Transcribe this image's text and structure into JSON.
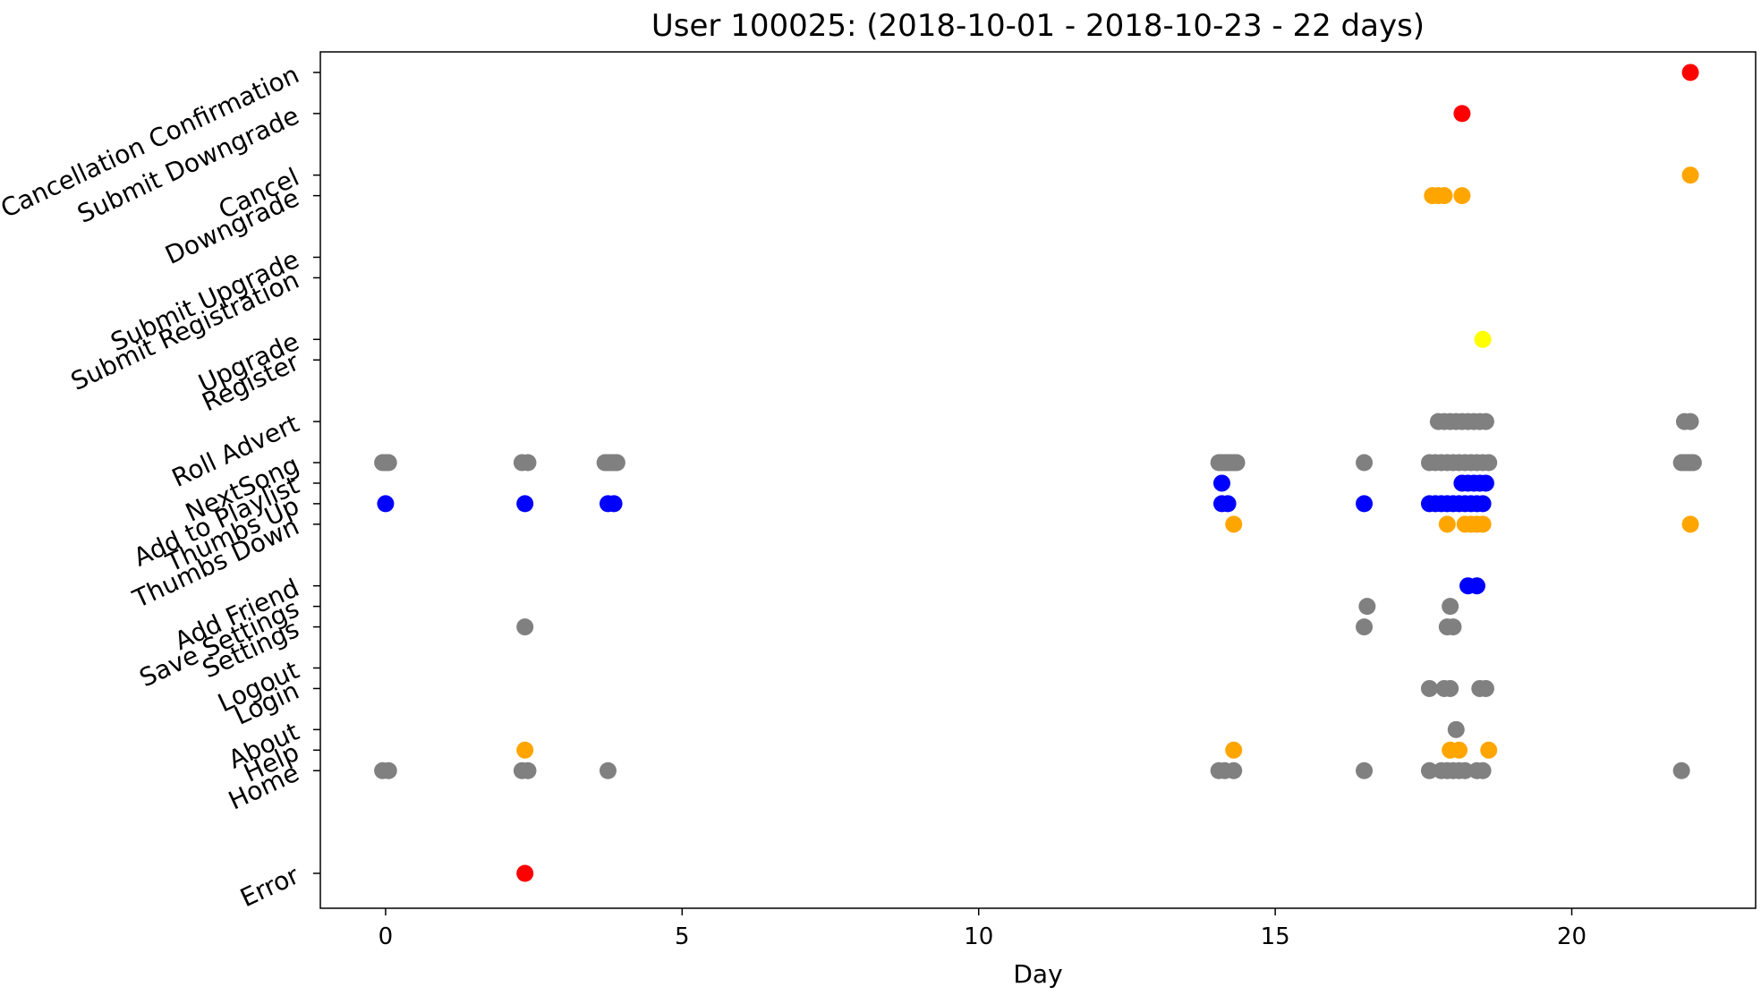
{
  "chart_data": {
    "type": "scatter",
    "title": "User 100025:  (2018-10-01 - 2018-10-23 - 22 days)",
    "xlabel": "Day",
    "ylabel": "",
    "xlim": [
      -1.1,
      23.1
    ],
    "xticks": [
      0,
      5,
      10,
      15,
      20
    ],
    "grid": false,
    "categories": [
      {
        "name": "Cancellation Confirmation",
        "y": 20
      },
      {
        "name": "Submit Downgrade",
        "y": 18
      },
      {
        "name": "Cancel",
        "y": 15
      },
      {
        "name": "Downgrade",
        "y": 14
      },
      {
        "name": "Submit Upgrade",
        "y": 11
      },
      {
        "name": "Submit Registration",
        "y": 10
      },
      {
        "name": "Upgrade",
        "y": 7
      },
      {
        "name": "Register",
        "y": 6
      },
      {
        "name": "Roll Advert",
        "y": 3
      },
      {
        "name": "NextSong",
        "y": 1
      },
      {
        "name": "Add to Playlist",
        "y": 0
      },
      {
        "name": "Thumbs Up",
        "y": -1
      },
      {
        "name": "Thumbs Down",
        "y": -2
      },
      {
        "name": "Add Friend",
        "y": -5
      },
      {
        "name": "Save Settings",
        "y": -6
      },
      {
        "name": "Settings",
        "y": -7
      },
      {
        "name": "Logout",
        "y": -9
      },
      {
        "name": "Login",
        "y": -10
      },
      {
        "name": "About",
        "y": -12
      },
      {
        "name": "Help",
        "y": -13
      },
      {
        "name": "Home",
        "y": -14
      },
      {
        "name": "Error",
        "y": -19
      }
    ],
    "colors": {
      "red": "#ff0000",
      "orange": "#ffa500",
      "yellow": "#ffff00",
      "gray": "#808080",
      "blue": "#0000ff"
    },
    "series": [
      {
        "color": "red",
        "event": "Cancellation Confirmation",
        "x": [
          22.0
        ]
      },
      {
        "color": "red",
        "event": "Submit Downgrade",
        "x": [
          18.15
        ]
      },
      {
        "color": "orange",
        "event": "Cancel",
        "x": [
          22.0
        ]
      },
      {
        "color": "orange",
        "event": "Downgrade",
        "x": [
          17.65,
          17.75,
          17.85,
          18.15
        ]
      },
      {
        "color": "yellow",
        "event": "Upgrade",
        "x": [
          18.5
        ]
      },
      {
        "color": "gray",
        "event": "Roll Advert",
        "x": [
          17.75,
          17.85,
          17.95,
          18.05,
          18.15,
          18.25,
          18.35,
          18.45,
          18.55,
          21.9,
          22.0
        ]
      },
      {
        "color": "gray",
        "event": "NextSong",
        "x": [
          -0.05,
          0.0,
          0.05,
          2.3,
          2.4,
          3.7,
          3.75,
          3.8,
          3.85,
          3.9,
          14.05,
          14.1,
          14.15,
          14.2,
          14.25,
          14.3,
          14.35,
          16.5,
          17.6,
          17.7,
          17.8,
          17.9,
          18.0,
          18.1,
          18.2,
          18.3,
          18.4,
          18.5,
          18.6,
          21.85,
          21.9,
          21.95,
          22.0,
          22.05
        ]
      },
      {
        "color": "blue",
        "event": "Add to Playlist",
        "x": [
          14.1,
          18.15,
          18.25,
          18.35,
          18.45,
          18.55
        ]
      },
      {
        "color": "blue",
        "event": "Thumbs Up",
        "x": [
          0.0,
          2.35,
          3.75,
          3.85,
          14.1,
          14.2,
          16.5,
          17.6,
          17.7,
          17.8,
          17.9,
          18.0,
          18.1,
          18.2,
          18.3,
          18.4,
          18.5
        ]
      },
      {
        "color": "orange",
        "event": "Thumbs Down",
        "x": [
          14.3,
          17.9,
          18.2,
          18.3,
          18.4,
          18.5,
          22.0
        ]
      },
      {
        "color": "blue",
        "event": "Add Friend",
        "x": [
          18.25,
          18.4
        ]
      },
      {
        "color": "gray",
        "event": "Save Settings",
        "x": [
          16.55,
          17.95
        ]
      },
      {
        "color": "gray",
        "event": "Settings",
        "x": [
          2.35,
          16.5,
          17.9,
          18.0
        ]
      },
      {
        "color": "gray",
        "event": "Login",
        "x": [
          17.6,
          17.85,
          17.95,
          18.45,
          18.55
        ]
      },
      {
        "color": "gray",
        "event": "About",
        "x": [
          18.05
        ]
      },
      {
        "color": "orange",
        "event": "Help",
        "x": [
          2.35,
          14.3,
          17.95,
          18.1,
          18.6
        ]
      },
      {
        "color": "gray",
        "event": "Home",
        "x": [
          -0.05,
          0.05,
          2.3,
          2.4,
          3.75,
          14.05,
          14.15,
          14.3,
          16.5,
          17.6,
          17.8,
          17.9,
          18.0,
          18.1,
          18.2,
          18.4,
          18.5,
          21.85
        ]
      },
      {
        "color": "red",
        "event": "Error",
        "x": [
          2.35
        ]
      }
    ]
  }
}
